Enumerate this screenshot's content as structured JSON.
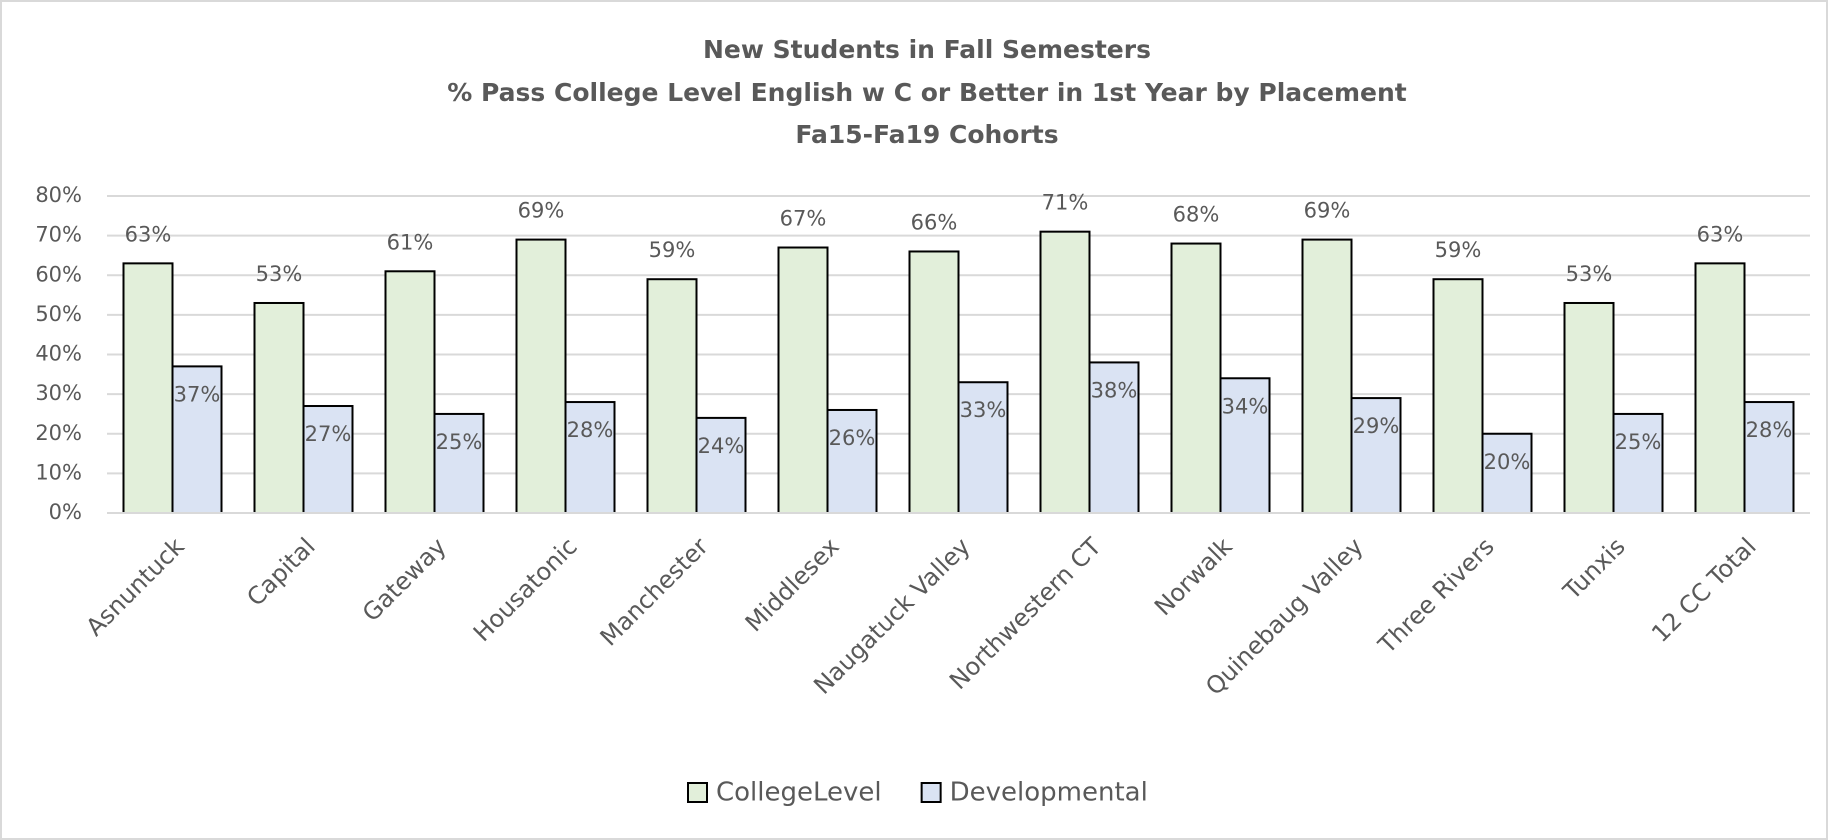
{
  "chart_data": {
    "type": "bar",
    "title": "New Students in Fall Semesters",
    "subtitle": [
      "% Pass College Level English w C or Better in 1st Year by Placement",
      "Fa15-Fa19 Cohorts"
    ],
    "categories": [
      "Asnuntuck",
      "Capital",
      "Gateway",
      "Housatonic",
      "Manchester",
      "Middlesex",
      "Naugatuck Valley",
      "Northwestern CT",
      "Norwalk",
      "Quinebaug Valley",
      "Three Rivers",
      "Tunxis",
      "12 CC Total"
    ],
    "series": [
      {
        "name": "CollegeLevel",
        "color": "#e2efda",
        "values": [
          63,
          53,
          61,
          69,
          59,
          67,
          66,
          71,
          68,
          69,
          59,
          53,
          63
        ],
        "value_labels": [
          "63%",
          "53%",
          "61%",
          "69%",
          "59%",
          "67%",
          "66%",
          "71%",
          "68%",
          "69%",
          "59%",
          "53%",
          "63%"
        ]
      },
      {
        "name": "Developmental",
        "color": "#dae3f3",
        "values": [
          37,
          27,
          25,
          28,
          24,
          26,
          33,
          38,
          34,
          29,
          20,
          25,
          28
        ],
        "value_labels": [
          "37%",
          "27%",
          "25%",
          "28%",
          "24%",
          "26%",
          "33%",
          "38%",
          "34%",
          "29%",
          "20%",
          "25%",
          "28%"
        ]
      }
    ],
    "ylim": [
      0,
      80
    ],
    "yticks": [
      {
        "value": 0,
        "label": "0%"
      },
      {
        "value": 10,
        "label": "10%"
      },
      {
        "value": 20,
        "label": "20%"
      },
      {
        "value": 30,
        "label": "30%"
      },
      {
        "value": 40,
        "label": "40%"
      },
      {
        "value": 50,
        "label": "50%"
      },
      {
        "value": 60,
        "label": "60%"
      },
      {
        "value": 70,
        "label": "70%"
      },
      {
        "value": 80,
        "label": "80%"
      }
    ],
    "grid": true,
    "legend": "bottom"
  }
}
